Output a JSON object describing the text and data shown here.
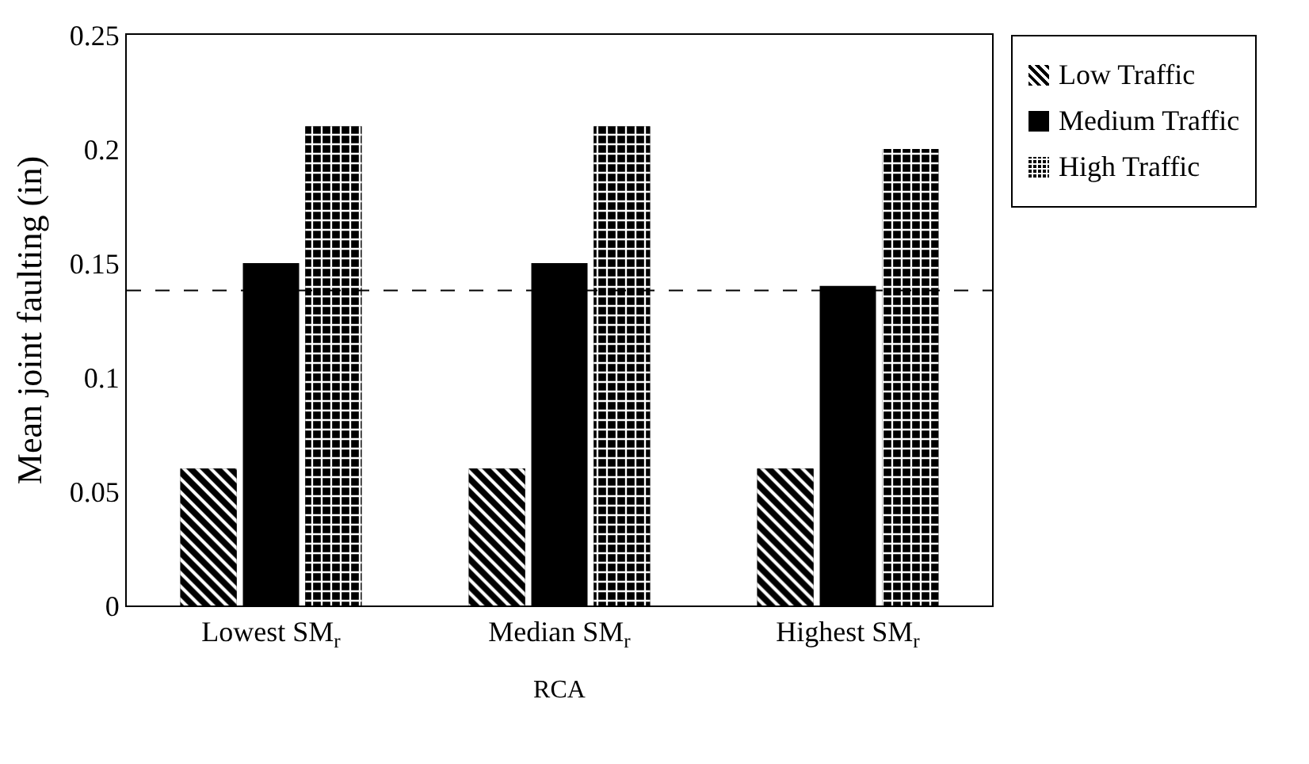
{
  "chart_data": {
    "type": "bar",
    "xlabel": "RCA",
    "ylabel": "Mean joint faulting (in)",
    "categories": [
      "Lowest SM$_{r}$",
      "Median SM$_{r}$",
      "Highest SM$_{r}$"
    ],
    "series": [
      {
        "name": "Low Traffic",
        "color": "#000000",
        "values": [
          0.06,
          0.06,
          0.06
        ]
      },
      {
        "name": "Medium Traffic",
        "color": "#000000",
        "values": [
          0.15,
          0.15,
          0.14
        ]
      },
      {
        "name": "High Traffic",
        "color": "#000000",
        "values": [
          0.21,
          0.21,
          0.2
        ]
      }
    ],
    "ylim": [
      0,
      0.25
    ],
    "yticks": [
      0,
      0.05,
      0.1,
      0.15,
      0.2,
      0.25
    ],
    "grid": false,
    "legend": "top right",
    "ref_lines": [
      {
        "axis": "y",
        "value": 0.138,
        "line_style": "dashed",
        "color": "#000000"
      }
    ]
  }
}
